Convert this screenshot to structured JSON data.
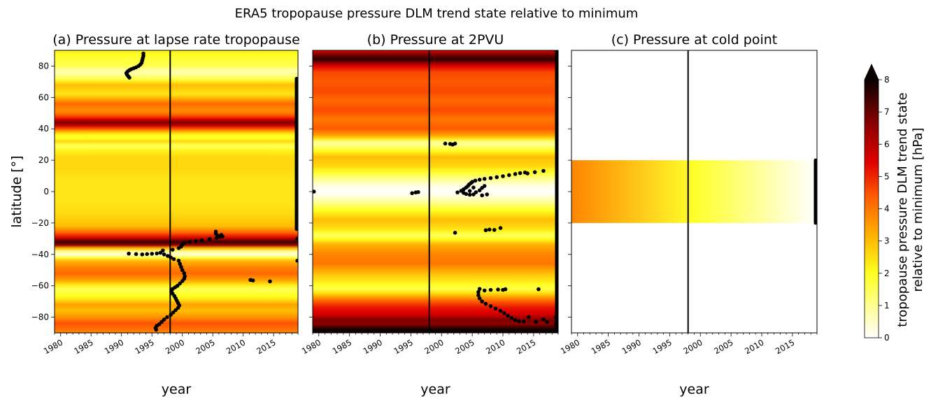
{
  "suptitle": "ERA5 tropopause pressure DLM trend state relative to minimum",
  "chart_data": [
    {
      "type": "heatmap",
      "title": "(a) Pressure at lapse rate tropopause",
      "xlabel": "year",
      "ylabel": "latitude [°]",
      "xlim": [
        1979,
        2019
      ],
      "ylim": [
        -90,
        90
      ],
      "xticks": [
        "1980",
        "1985",
        "1990",
        "1995",
        "2000",
        "2005",
        "2010",
        "2015"
      ],
      "yticks": [
        "80",
        "60",
        "40",
        "20",
        "0",
        "−20",
        "−40",
        "−60",
        "−80"
      ],
      "vertical_line_year": 1998,
      "profile": [
        {
          "lat": 90,
          "v": 2.2
        },
        {
          "lat": 85,
          "v": 1.8
        },
        {
          "lat": 80,
          "v": 1.6
        },
        {
          "lat": 77,
          "v": 0.6
        },
        {
          "lat": 73,
          "v": 1.2
        },
        {
          "lat": 68,
          "v": 3.0
        },
        {
          "lat": 62,
          "v": 2.4
        },
        {
          "lat": 56,
          "v": 4.2
        },
        {
          "lat": 51,
          "v": 3.6
        },
        {
          "lat": 47,
          "v": 5.0
        },
        {
          "lat": 44,
          "v": 6.8
        },
        {
          "lat": 41,
          "v": 5.2
        },
        {
          "lat": 38,
          "v": 3.0
        },
        {
          "lat": 35,
          "v": 1.6
        },
        {
          "lat": 32,
          "v": 2.6
        },
        {
          "lat": 29,
          "v": 1.2
        },
        {
          "lat": 26,
          "v": 2.2
        },
        {
          "lat": 22,
          "v": 2.6
        },
        {
          "lat": 15,
          "v": 2.6
        },
        {
          "lat": 8,
          "v": 2.4
        },
        {
          "lat": 0,
          "v": 2.4
        },
        {
          "lat": -8,
          "v": 2.4
        },
        {
          "lat": -15,
          "v": 2.6
        },
        {
          "lat": -22,
          "v": 3.0
        },
        {
          "lat": -27,
          "v": 4.5
        },
        {
          "lat": -30,
          "v": 6.0
        },
        {
          "lat": -32,
          "v": 7.5
        },
        {
          "lat": -34,
          "v": 6.5
        },
        {
          "lat": -37,
          "v": 1.5
        },
        {
          "lat": -40,
          "v": 0.3
        },
        {
          "lat": -44,
          "v": 3.0
        },
        {
          "lat": -48,
          "v": 3.8
        },
        {
          "lat": -52,
          "v": 4.2
        },
        {
          "lat": -56,
          "v": 3.5
        },
        {
          "lat": -62,
          "v": 1.5
        },
        {
          "lat": -68,
          "v": 2.2
        },
        {
          "lat": -72,
          "v": 3.4
        },
        {
          "lat": -76,
          "v": 3.0
        },
        {
          "lat": -80,
          "v": 3.6
        },
        {
          "lat": -84,
          "v": 4.5
        },
        {
          "lat": -90,
          "v": 3.8
        }
      ],
      "points": [
        [
          1993.6,
          88
        ],
        [
          1993.6,
          86.5
        ],
        [
          1993.5,
          85
        ],
        [
          1993.4,
          83.5
        ],
        [
          1993.3,
          82
        ],
        [
          1993.1,
          81
        ],
        [
          1992.8,
          80
        ],
        [
          1992.4,
          79.2
        ],
        [
          1992,
          78.6
        ],
        [
          1991.6,
          78
        ],
        [
          1991.3,
          77.4
        ],
        [
          1991,
          76.5
        ],
        [
          1990.8,
          75.5
        ],
        [
          1990.9,
          74.5
        ],
        [
          1991.1,
          73.5
        ],
        [
          1991.3,
          72.6
        ],
        [
          1991.2,
          -39.5
        ],
        [
          1992.4,
          -39.8
        ],
        [
          1993.4,
          -40
        ],
        [
          1994.2,
          -39.8
        ],
        [
          1995.0,
          -39.6
        ],
        [
          1995.8,
          -39.4
        ],
        [
          1996.4,
          -39
        ],
        [
          1997.0,
          -40
        ],
        [
          1997.6,
          -41
        ],
        [
          1998.1,
          -42
        ],
        [
          1998.6,
          -43
        ],
        [
          1996.8,
          -37.5
        ],
        [
          1998.4,
          -37
        ],
        [
          1999.4,
          -36
        ],
        [
          1999.8,
          -35
        ],
        [
          2000.0,
          -33.8
        ],
        [
          2000.4,
          -32.6
        ],
        [
          2001.2,
          -32
        ],
        [
          2002.2,
          -31.6
        ],
        [
          2003.2,
          -31
        ],
        [
          2004.5,
          -30.2
        ],
        [
          2005.6,
          -29.6
        ],
        [
          2006.2,
          -28.8
        ],
        [
          2005.8,
          -28
        ],
        [
          2005.5,
          -26.8
        ],
        [
          2005.5,
          -25.5
        ],
        [
          2006.4,
          -27.6
        ],
        [
          2006.6,
          -28.6
        ],
        [
          1999.4,
          -44
        ],
        [
          1999.6,
          -46
        ],
        [
          1999.8,
          -48
        ],
        [
          2000.0,
          -50
        ],
        [
          2000.3,
          -52
        ],
        [
          2000.4,
          -54
        ],
        [
          2000.3,
          -55.5
        ],
        [
          2000.0,
          -57
        ],
        [
          1999.6,
          -58.5
        ],
        [
          1999.2,
          -60
        ],
        [
          1998.8,
          -61
        ],
        [
          1998.4,
          -62
        ],
        [
          1998.2,
          -63.5
        ],
        [
          1998.4,
          -65
        ],
        [
          1998.7,
          -66.5
        ],
        [
          1998.9,
          -68
        ],
        [
          1999.1,
          -69.5
        ],
        [
          1999.3,
          -71
        ],
        [
          1999.5,
          -72.5
        ],
        [
          1999.3,
          -74
        ],
        [
          1998.9,
          -75.5
        ],
        [
          1998.5,
          -77
        ],
        [
          1998.1,
          -78.5
        ],
        [
          1997.5,
          -80
        ],
        [
          1997.0,
          -81.5
        ],
        [
          1996.6,
          -83
        ],
        [
          1996.2,
          -84.5
        ],
        [
          1995.8,
          -85.5
        ],
        [
          1995.6,
          -86.8
        ],
        [
          1995.7,
          -88
        ],
        [
          2011.2,
          -56.3
        ],
        [
          2011.6,
          -56.6
        ],
        [
          2014.4,
          -57.2
        ]
      ],
      "edge_bar_lat": [
        -24,
        72
      ],
      "edge_extra_points": [
        [
          2018.9,
          -30
        ],
        [
          2018.9,
          -44
        ]
      ]
    },
    {
      "type": "heatmap",
      "title": "(b) Pressure at 2PVU",
      "xlabel": "year",
      "ylabel": "",
      "xlim": [
        1979,
        2019
      ],
      "ylim": [
        -90,
        90
      ],
      "xticks": [
        "1980",
        "1985",
        "1990",
        "1995",
        "2000",
        "2005",
        "2010",
        "2015"
      ],
      "vertical_line_year": 1998,
      "profile": [
        {
          "lat": 90,
          "v": 5.4
        },
        {
          "lat": 87,
          "v": 7.0
        },
        {
          "lat": 84,
          "v": 7.6
        },
        {
          "lat": 80,
          "v": 5.5
        },
        {
          "lat": 76,
          "v": 4.6
        },
        {
          "lat": 70,
          "v": 4.4
        },
        {
          "lat": 64,
          "v": 4.6
        },
        {
          "lat": 58,
          "v": 4.2
        },
        {
          "lat": 52,
          "v": 4.6
        },
        {
          "lat": 46,
          "v": 4.0
        },
        {
          "lat": 40,
          "v": 4.4
        },
        {
          "lat": 35,
          "v": 3.2
        },
        {
          "lat": 31,
          "v": 0.6
        },
        {
          "lat": 27,
          "v": 1.8
        },
        {
          "lat": 22,
          "v": 3.0
        },
        {
          "lat": 16,
          "v": 2.6
        },
        {
          "lat": 10,
          "v": 1.4
        },
        {
          "lat": 4,
          "v": 0.3
        },
        {
          "lat": 0,
          "v": 0.0
        },
        {
          "lat": -5,
          "v": 0.6
        },
        {
          "lat": -12,
          "v": 2.0
        },
        {
          "lat": -18,
          "v": 3.0
        },
        {
          "lat": -24,
          "v": 2.4
        },
        {
          "lat": -28,
          "v": 1.4
        },
        {
          "lat": -34,
          "v": 3.2
        },
        {
          "lat": -40,
          "v": 3.8
        },
        {
          "lat": -46,
          "v": 4.0
        },
        {
          "lat": -52,
          "v": 3.0
        },
        {
          "lat": -58,
          "v": 2.2
        },
        {
          "lat": -62,
          "v": 1.6
        },
        {
          "lat": -66,
          "v": 3.0
        },
        {
          "lat": -70,
          "v": 4.4
        },
        {
          "lat": -74,
          "v": 5.2
        },
        {
          "lat": -78,
          "v": 5.6
        },
        {
          "lat": -82,
          "v": 6.8
        },
        {
          "lat": -85,
          "v": 6.4
        },
        {
          "lat": -87,
          "v": 8.0
        },
        {
          "lat": -90,
          "v": 8.0
        }
      ],
      "points": [
        [
          1979.2,
          0
        ],
        [
          1995.2,
          -1
        ],
        [
          1995.8,
          -0.5
        ],
        [
          1996.2,
          -0.3
        ],
        [
          2000.6,
          30.6
        ],
        [
          2001.4,
          30.4
        ],
        [
          2002.2,
          30.6
        ],
        [
          2001.8,
          30.0
        ],
        [
          2002.6,
          -0.5
        ],
        [
          2003.2,
          0.5
        ],
        [
          2003.6,
          1.5
        ],
        [
          2004.0,
          2.6
        ],
        [
          2004.3,
          3.6
        ],
        [
          2004.5,
          4.6
        ],
        [
          2004.8,
          5.5
        ],
        [
          2005.0,
          6.2
        ],
        [
          2005.5,
          7.0
        ],
        [
          2006.2,
          7.6
        ],
        [
          2007.0,
          8.1
        ],
        [
          2008.0,
          8.6
        ],
        [
          2009.0,
          9.2
        ],
        [
          2010.0,
          9.8
        ],
        [
          2011.0,
          10.5
        ],
        [
          2012.0,
          11.2
        ],
        [
          2012.8,
          11.8
        ],
        [
          2013.6,
          12.2
        ],
        [
          2014.0,
          11.6
        ],
        [
          2015.2,
          12.4
        ],
        [
          2016.6,
          13.2
        ],
        [
          2003.6,
          -0.8
        ],
        [
          2004.0,
          -1.5
        ],
        [
          2004.6,
          -2.0
        ],
        [
          2005.2,
          -1.8
        ],
        [
          2005.6,
          -0.4
        ],
        [
          2006.2,
          0.8
        ],
        [
          2006.6,
          2.4
        ],
        [
          2007.0,
          3.6
        ],
        [
          2006.6,
          -2.4
        ],
        [
          2007.4,
          -1.8
        ],
        [
          2005.2,
          2.6
        ],
        [
          2004.6,
          0.4
        ],
        [
          2002.2,
          -26.2
        ],
        [
          2007.2,
          -24.6
        ],
        [
          2007.8,
          -24.2
        ],
        [
          2008.6,
          -24.4
        ],
        [
          2009.6,
          -23.2
        ],
        [
          2006.2,
          -62
        ],
        [
          2006.0,
          -64
        ],
        [
          2006.0,
          -66
        ],
        [
          2006.2,
          -68
        ],
        [
          2006.6,
          -70
        ],
        [
          2007.2,
          -71.5
        ],
        [
          2008.0,
          -73
        ],
        [
          2008.8,
          -74.5
        ],
        [
          2009.6,
          -76
        ],
        [
          2010.2,
          -77.5
        ],
        [
          2010.8,
          -79
        ],
        [
          2011.4,
          -80.5
        ],
        [
          2012.0,
          -81.8
        ],
        [
          2012.6,
          -82.6
        ],
        [
          2013.4,
          -82.8
        ],
        [
          2007.0,
          -63
        ],
        [
          2008.0,
          -62.6
        ],
        [
          2009.2,
          -62.4
        ],
        [
          2010.0,
          -62.6
        ],
        [
          2010.4,
          -62.2
        ],
        [
          2015.8,
          -62.2
        ],
        [
          2014.2,
          -80
        ],
        [
          2016.6,
          -81.5
        ],
        [
          2015.4,
          -83
        ],
        [
          2017.2,
          -83
        ],
        [
          2018.6,
          -80
        ],
        [
          2018.6,
          -84.5
        ]
      ],
      "edge_bar_lat": [
        -90,
        90
      ],
      "edge_extra_points": [
        [
          2018.9,
          12
        ],
        [
          2018.9,
          4
        ],
        [
          2018.9,
          -2
        ]
      ]
    },
    {
      "type": "heatmap",
      "title": "(c) Pressure at cold point",
      "xlabel": "year",
      "ylabel": "",
      "xlim": [
        1979,
        2019
      ],
      "ylim": [
        -90,
        90
      ],
      "xticks": [
        "1980",
        "1985",
        "1990",
        "1995",
        "2000",
        "2005",
        "2010",
        "2015"
      ],
      "vertical_line_year": 1998,
      "band_lat": [
        -20,
        20
      ],
      "band_start_value": 3.8,
      "band_end_value": 0.0,
      "points": [],
      "edge_bar_lat": [
        -20,
        20
      ],
      "edge_extra_points": []
    }
  ],
  "colorbar": {
    "label_line1": "tropopause pressure DLM trend state",
    "label_line2": "relative to minimum [hPa]",
    "ticks": [
      "0",
      "1",
      "2",
      "3",
      "4",
      "5",
      "6",
      "7",
      "8"
    ],
    "vmin": 0,
    "vmax": 8,
    "extend": "max",
    "colormap": "hot_r"
  }
}
